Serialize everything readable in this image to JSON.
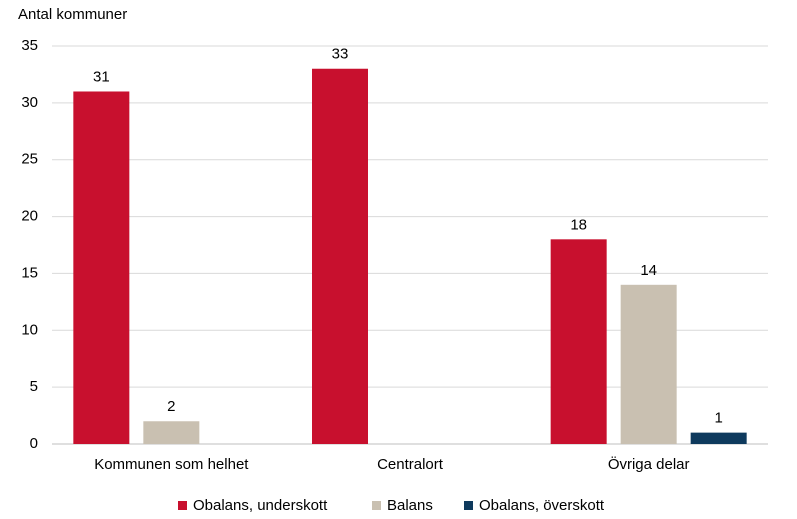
{
  "chart_data": {
    "type": "bar",
    "y_axis_label": "Antal kommuner",
    "categories": [
      "Kommunen som helhet",
      "Centralort",
      "Övriga delar"
    ],
    "series": [
      {
        "name": "Obalans, underskott",
        "color": "#c8102e",
        "values": [
          31,
          33,
          18
        ]
      },
      {
        "name": "Balans",
        "color": "#c9c0b1",
        "values": [
          2,
          null,
          14
        ]
      },
      {
        "name": "Obalans, överskott",
        "color": "#0e3a5d",
        "values": [
          null,
          null,
          1
        ]
      }
    ],
    "ylim": [
      0,
      35
    ],
    "yticks": [
      0,
      5,
      10,
      15,
      20,
      25,
      30,
      35
    ],
    "grid": true,
    "legend": "bottom"
  }
}
